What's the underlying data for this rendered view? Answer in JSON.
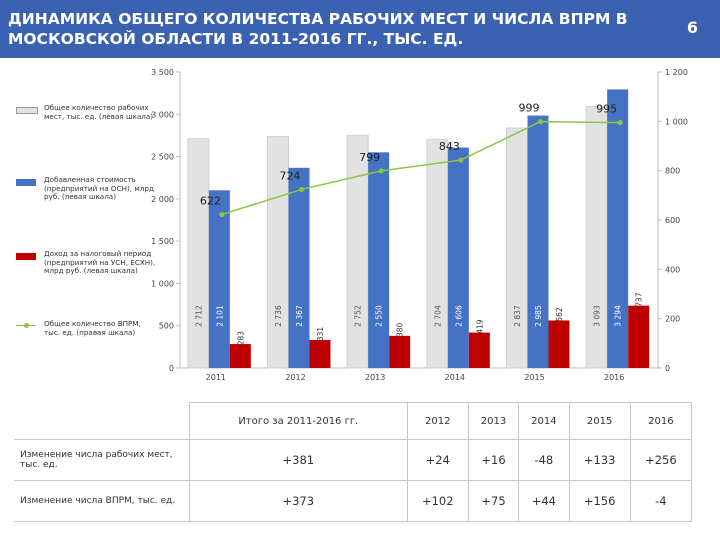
{
  "header": {
    "title": "ДИНАМИКА ОБЩЕГО КОЛИЧЕСТВА РАБОЧИХ МЕСТ И ЧИСЛА ВПРМ В МОСКОВСКОЙ ОБЛАСТИ В 2011-2016 ГГ., ТЫС. ЕД.",
    "page_number": "6"
  },
  "colors": {
    "header_bg": "#3a62b0",
    "jobs": "#e2e2e2",
    "value_added": "#4472c4",
    "tax_income": "#c00000",
    "vprm": "#8dc63f",
    "positive": "#2e9a3e",
    "negative": "#d42020"
  },
  "legend": [
    {
      "key": "jobs",
      "text": "Общее количество рабочих мест, тыс. ед. (левая шкала)"
    },
    {
      "key": "value_added",
      "text": "Добавленная стоимость (предприятий на ОСН), млрд руб. (левая шкала)"
    },
    {
      "key": "tax_income",
      "text": "Доход за налоговый период (предприятий на УСН, ЕСХН), млрд руб. (левая шкала)"
    },
    {
      "key": "vprm",
      "text": "Общее количество ВПРМ, тыс. ед. (правая шкала)"
    }
  ],
  "chart_data": {
    "type": "bar",
    "categories": [
      "2011",
      "2012",
      "2013",
      "2014",
      "2015",
      "2016"
    ],
    "series": [
      {
        "key": "jobs",
        "values": [
          2712,
          2736,
          2752,
          2704,
          2837,
          3093
        ],
        "labels": [
          "2 712",
          "2 736",
          "2 752",
          "2 704",
          "2 837",
          "3 093"
        ],
        "axis": "left"
      },
      {
        "key": "value_added",
        "values": [
          2101,
          2367,
          2550,
          2606,
          2985,
          3294
        ],
        "labels": [
          "2 101",
          "2 367",
          "2 550",
          "2 606",
          "2 985",
          "3 294"
        ],
        "axis": "left"
      },
      {
        "key": "tax_income",
        "values": [
          283,
          331,
          380,
          419,
          562,
          737
        ],
        "labels": [
          "283",
          "331",
          "380",
          "419",
          "562",
          "737"
        ],
        "axis": "left"
      },
      {
        "key": "vprm",
        "type": "line",
        "values": [
          622,
          724,
          799,
          843,
          999,
          995
        ],
        "labels": [
          "622",
          "724",
          "799",
          "843",
          "999",
          "995"
        ],
        "axis": "right"
      }
    ],
    "y_left": {
      "min": 0,
      "max": 3500,
      "ticks": [
        0,
        500,
        1000,
        1500,
        2000,
        2500,
        3000,
        3500
      ],
      "tick_labels": [
        "0",
        "500",
        "1 000",
        "1 500",
        "2 000",
        "2 500",
        "3 000",
        "3 500"
      ]
    },
    "y_right": {
      "min": 0,
      "max": 1200,
      "ticks": [
        0,
        200,
        400,
        600,
        800,
        1000,
        1200
      ],
      "tick_labels": [
        "0",
        "200",
        "400",
        "600",
        "800",
        "1 000",
        "1 200"
      ]
    },
    "grid": false,
    "legend_position": "left"
  },
  "table": {
    "corner": "",
    "col_headers": [
      "Итого за 2011-2016 гг.",
      "2012",
      "2013",
      "2014",
      "2015",
      "2016"
    ],
    "rows": [
      {
        "label": "Изменение числа рабочих мест, тыс. ед.",
        "values": [
          "+381",
          "+24",
          "+16",
          "-48",
          "+133",
          "+256"
        ]
      },
      {
        "label": "Изменение числа ВПРМ, тыс. ед.",
        "values": [
          "+373",
          "+102",
          "+75",
          "+44",
          "+156",
          "-4"
        ]
      }
    ]
  }
}
